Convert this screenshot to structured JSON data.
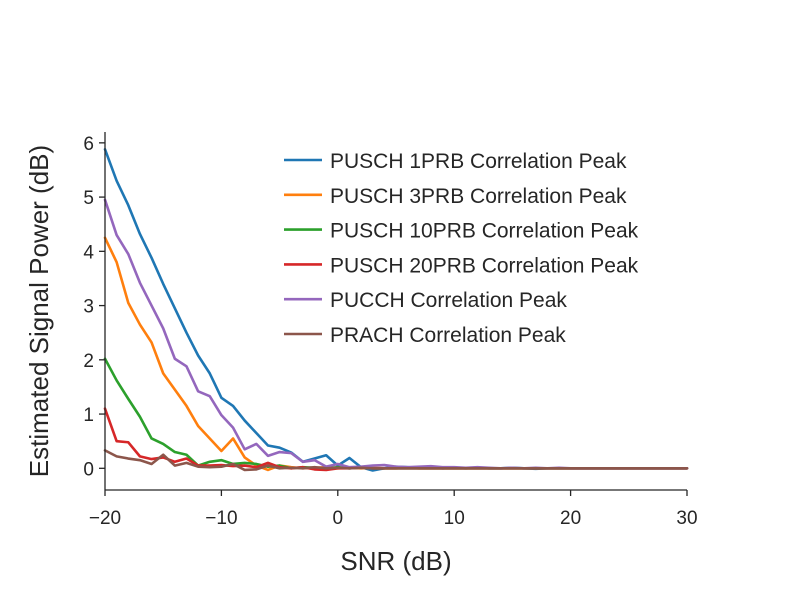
{
  "chart_data": {
    "type": "line",
    "title": "",
    "xlabel": "SNR (dB)",
    "ylabel": "Estimated Signal Power (dB)",
    "xlim": [
      -20,
      30
    ],
    "ylim": [
      -0.4,
      6.2
    ],
    "xticks": [
      -20,
      -10,
      0,
      10,
      20,
      30
    ],
    "xtick_labels": [
      "−20",
      "−10",
      "0",
      "10",
      "20",
      "30"
    ],
    "yticks": [
      0,
      1,
      2,
      3,
      4,
      5,
      6
    ],
    "ytick_labels": [
      "0",
      "1",
      "2",
      "3",
      "4",
      "5",
      "6"
    ],
    "legend_position": "top-right",
    "grid": false,
    "x": [
      -20,
      -19,
      -18,
      -17,
      -16,
      -15,
      -14,
      -13,
      -12,
      -11,
      -10,
      -9,
      -8,
      -7,
      -6,
      -5,
      -4,
      -3,
      -2,
      -1,
      0,
      1,
      2,
      3,
      4,
      5,
      6,
      7,
      8,
      9,
      10,
      11,
      12,
      13,
      14,
      15,
      16,
      17,
      18,
      19,
      20,
      21,
      22,
      23,
      24,
      25,
      26,
      27,
      28,
      29,
      30
    ],
    "series": [
      {
        "name": "PUSCH 1PRB Correlation Peak",
        "color": "#1f77b4",
        "values": [
          5.88,
          5.3,
          4.85,
          4.32,
          3.88,
          3.4,
          2.95,
          2.5,
          2.08,
          1.75,
          1.3,
          1.15,
          0.88,
          0.65,
          0.42,
          0.38,
          0.29,
          0.12,
          0.18,
          0.24,
          0.05,
          0.19,
          0.02,
          -0.04,
          0.0,
          0.03,
          0.02,
          0.01,
          0.02,
          0.0,
          0.01,
          0.0,
          0.01,
          0.0,
          0.0,
          0.01,
          0.0,
          -0.01,
          0.0,
          0.0,
          0.0,
          0.0,
          0.0,
          0.0,
          0.0,
          0.0,
          0.0,
          0.0,
          0.0,
          0.0,
          0.0
        ]
      },
      {
        "name": "PUSCH 3PRB Correlation Peak",
        "color": "#ff7f0e",
        "values": [
          4.25,
          3.8,
          3.05,
          2.65,
          2.32,
          1.75,
          1.45,
          1.15,
          0.78,
          0.55,
          0.32,
          0.55,
          0.2,
          0.05,
          -0.03,
          0.05,
          0.02,
          0.0,
          0.01,
          0.02,
          0.0,
          0.01,
          0.0,
          0.01,
          0.0,
          0.0,
          0.01,
          0.0,
          0.0,
          0.0,
          0.0,
          0.0,
          0.0,
          0.0,
          0.0,
          0.0,
          0.0,
          0.0,
          0.0,
          0.0,
          0.0,
          0.0,
          0.0,
          0.0,
          0.0,
          0.0,
          0.0,
          0.0,
          0.0,
          0.0,
          0.0
        ]
      },
      {
        "name": "PUSCH 10PRB Correlation Peak",
        "color": "#2ca02c",
        "values": [
          2.02,
          1.62,
          1.28,
          0.95,
          0.55,
          0.45,
          0.3,
          0.25,
          0.05,
          0.12,
          0.15,
          0.08,
          0.1,
          0.08,
          0.03,
          0.05,
          0.0,
          0.02,
          0.01,
          0.0,
          0.02,
          0.0,
          0.01,
          0.0,
          0.0,
          0.0,
          0.0,
          0.0,
          0.0,
          0.0,
          0.0,
          0.0,
          0.0,
          0.0,
          0.0,
          0.0,
          0.0,
          0.0,
          0.0,
          0.0,
          0.0,
          0.0,
          0.0,
          0.0,
          0.0,
          0.0,
          0.0,
          0.0,
          0.0,
          0.0,
          0.0
        ]
      },
      {
        "name": "PUSCH 20PRB Correlation Peak",
        "color": "#d62728",
        "values": [
          1.1,
          0.5,
          0.48,
          0.22,
          0.17,
          0.2,
          0.12,
          0.18,
          0.05,
          0.05,
          0.06,
          0.04,
          0.05,
          0.02,
          0.1,
          0.02,
          0.0,
          0.02,
          -0.02,
          -0.03,
          0.0,
          0.0,
          0.01,
          0.0,
          0.0,
          0.0,
          0.0,
          0.0,
          0.0,
          0.0,
          0.0,
          0.0,
          0.0,
          0.0,
          0.0,
          0.0,
          0.0,
          0.0,
          0.0,
          0.0,
          0.0,
          0.0,
          0.0,
          0.0,
          0.0,
          0.0,
          0.0,
          0.0,
          0.0,
          0.0,
          0.0
        ]
      },
      {
        "name": "PUCCH Correlation Peak",
        "color": "#9467bd",
        "values": [
          4.95,
          4.3,
          3.95,
          3.42,
          3.0,
          2.58,
          2.02,
          1.88,
          1.42,
          1.33,
          0.98,
          0.75,
          0.35,
          0.45,
          0.23,
          0.3,
          0.28,
          0.12,
          0.15,
          0.03,
          0.08,
          0.02,
          0.03,
          0.05,
          0.06,
          0.03,
          0.02,
          0.03,
          0.04,
          0.02,
          0.02,
          0.01,
          0.02,
          0.01,
          0.0,
          0.01,
          0.0,
          0.01,
          0.0,
          0.01,
          0.0,
          0.0,
          0.0,
          0.0,
          0.0,
          0.0,
          0.0,
          0.0,
          0.0,
          0.0,
          0.0
        ]
      },
      {
        "name": "PRACH Correlation Peak",
        "color": "#8c564b",
        "values": [
          0.33,
          0.22,
          0.18,
          0.15,
          0.08,
          0.25,
          0.05,
          0.1,
          0.03,
          0.02,
          0.03,
          0.08,
          -0.03,
          -0.02,
          0.05,
          0.0,
          0.01,
          0.0,
          0.02,
          0.0,
          0.01,
          0.0,
          0.01,
          0.0,
          0.0,
          0.0,
          0.0,
          0.0,
          0.0,
          0.0,
          0.0,
          0.0,
          0.0,
          0.0,
          0.0,
          0.0,
          0.0,
          0.0,
          0.0,
          0.0,
          0.0,
          0.0,
          0.0,
          0.0,
          0.0,
          0.0,
          0.0,
          0.0,
          0.0,
          0.0,
          0.0
        ]
      }
    ]
  }
}
